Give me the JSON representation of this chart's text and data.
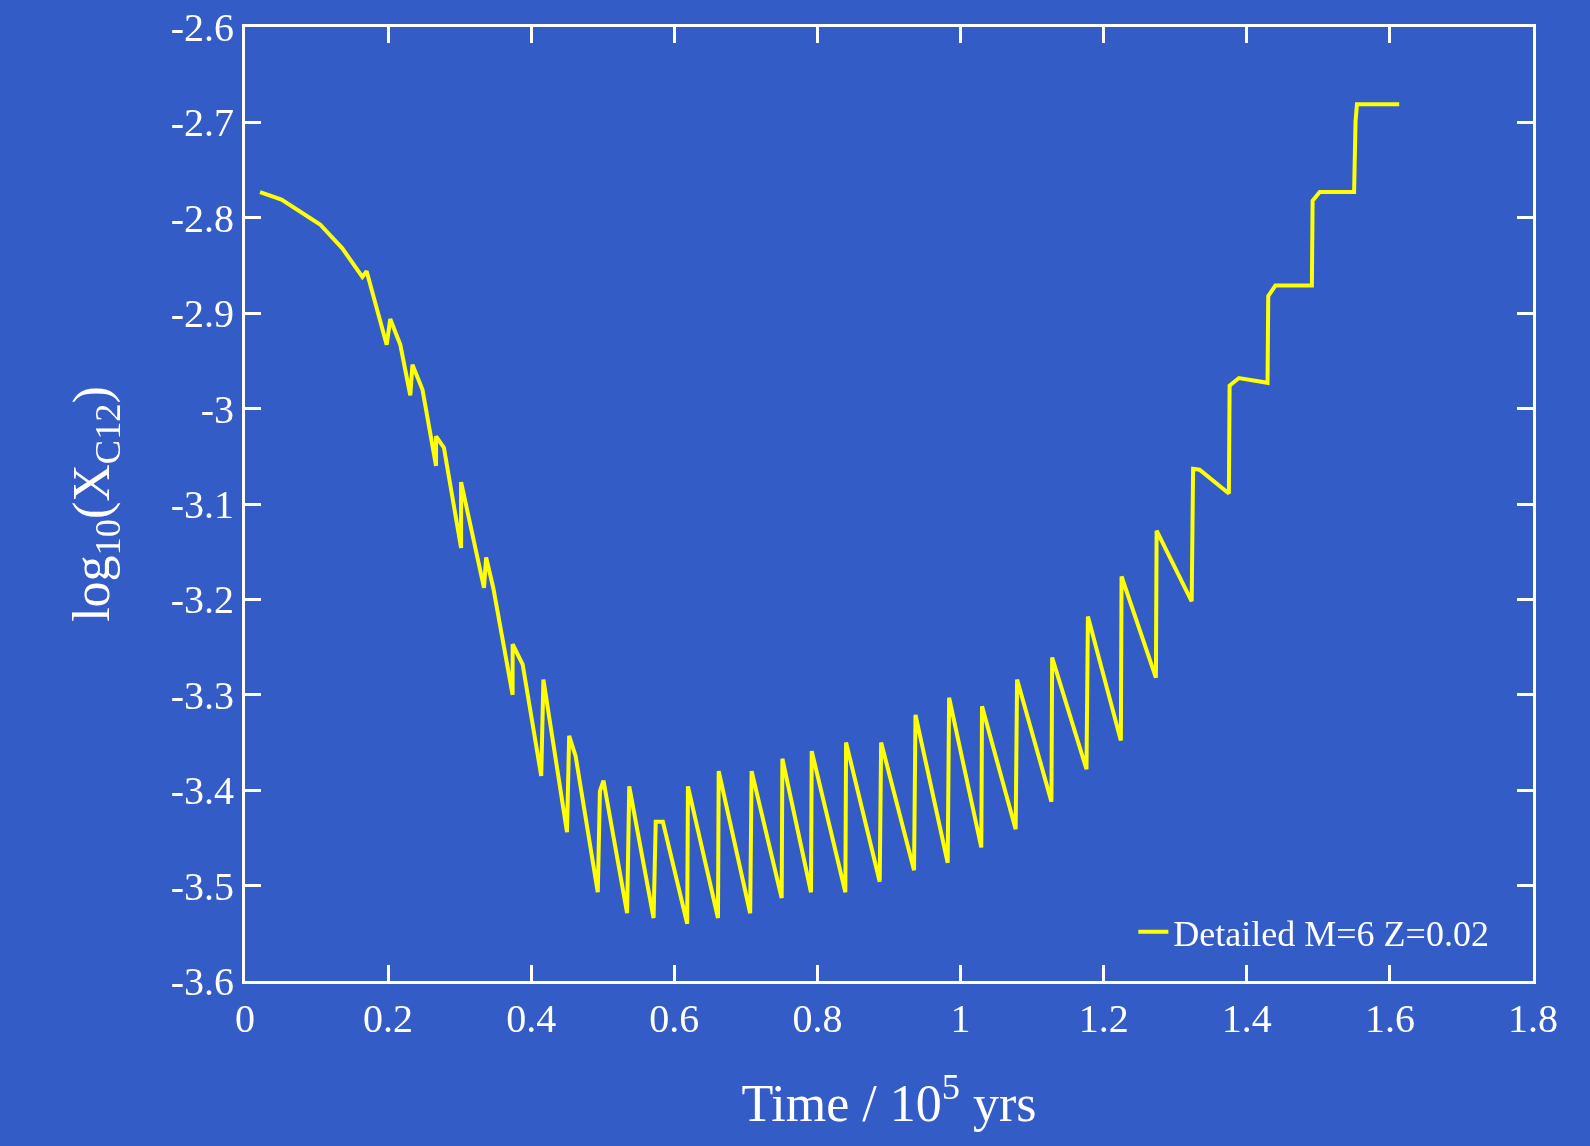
{
  "chart_data": {
    "type": "line",
    "xlabel": "Time / 10$^{5}$ yrs",
    "ylabel": "log$_{10}$(X$_{C12}$)",
    "x": [
      0.021,
      0.051,
      0.105,
      0.136,
      0.164,
      0.17,
      0.198,
      0.203,
      0.217,
      0.231,
      0.234,
      0.248,
      0.267,
      0.267,
      0.278,
      0.302,
      0.302,
      0.334,
      0.337,
      0.347,
      0.374,
      0.374,
      0.388,
      0.414,
      0.417,
      0.45,
      0.453,
      0.462,
      0.493,
      0.496,
      0.501,
      0.534,
      0.537,
      0.571,
      0.574,
      0.584,
      0.618,
      0.619,
      0.661,
      0.662,
      0.706,
      0.708,
      0.75,
      0.751,
      0.791,
      0.792,
      0.839,
      0.84,
      0.887,
      0.889,
      0.935,
      0.937,
      0.982,
      0.984,
      1.029,
      1.03,
      1.077,
      1.079,
      1.127,
      1.128,
      1.176,
      1.178,
      1.224,
      1.225,
      1.273,
      1.274,
      1.323,
      1.325,
      1.334,
      1.375,
      1.376,
      1.389,
      1.429,
      1.43,
      1.44,
      1.491,
      1.492,
      1.502,
      1.55,
      1.552,
      1.554,
      1.613
    ],
    "series": [
      {
        "name": "Detailed M=6 Z=0.02",
        "color": "#ffff00",
        "values": [
          -2.773,
          -2.781,
          -2.807,
          -2.832,
          -2.862,
          -2.856,
          -2.933,
          -2.906,
          -2.933,
          -2.986,
          -2.954,
          -2.98,
          -3.06,
          -3.029,
          -3.041,
          -3.146,
          -3.077,
          -3.188,
          -3.156,
          -3.188,
          -3.3,
          -3.247,
          -3.268,
          -3.385,
          -3.284,
          -3.444,
          -3.343,
          -3.364,
          -3.507,
          -3.401,
          -3.39,
          -3.529,
          -3.396,
          -3.534,
          -3.433,
          -3.433,
          -3.54,
          -3.396,
          -3.534,
          -3.38,
          -3.529,
          -3.38,
          -3.513,
          -3.367,
          -3.507,
          -3.359,
          -3.507,
          -3.35,
          -3.496,
          -3.35,
          -3.484,
          -3.321,
          -3.476,
          -3.303,
          -3.46,
          -3.312,
          -3.441,
          -3.284,
          -3.412,
          -3.261,
          -3.378,
          -3.218,
          -3.348,
          -3.176,
          -3.282,
          -3.128,
          -3.202,
          -3.063,
          -3.064,
          -3.089,
          -2.976,
          -2.968,
          -2.973,
          -2.882,
          -2.871,
          -2.871,
          -2.782,
          -2.773,
          -2.773,
          -2.699,
          -2.681,
          -2.681
        ]
      }
    ],
    "xlim": [
      0,
      1.8
    ],
    "xticks": [
      0,
      0.2,
      0.4,
      0.6,
      0.8,
      1,
      1.2,
      1.4,
      1.6,
      1.8
    ],
    "ylim": [
      -3.6,
      -2.6
    ],
    "yticks": [
      -3.6,
      -3.5,
      -3.4,
      -3.3,
      -3.2,
      -3.1,
      -3,
      -2.9,
      -2.8,
      -2.7,
      -2.6
    ],
    "grid": false,
    "legend": "bottom right",
    "line_style": "solid",
    "marker": "none"
  }
}
